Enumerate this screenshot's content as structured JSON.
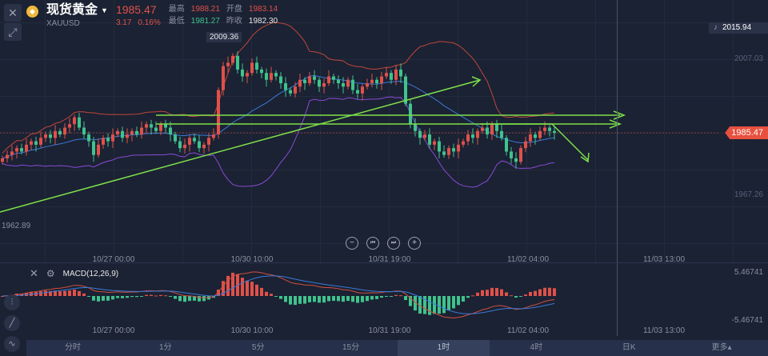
{
  "header": {
    "title": "现货黄金",
    "symbol": "XAUUSD",
    "price": "1985.47",
    "change": "3.17",
    "change_pct": "0.16%",
    "high_label": "最高",
    "high": "1988.21",
    "open_label": "开盘",
    "open": "1983.14",
    "low_label": "最低",
    "low": "1981.27",
    "prev_close_label": "昨收",
    "prev_close": "1982.30"
  },
  "price_axis": {
    "alert_price": "2015.94",
    "labels": [
      "2007.03",
      "1967.26"
    ],
    "current": "1985.47",
    "max_marker": "2009.36",
    "min_marker": "1962.89"
  },
  "time_axis": [
    "10/27 00:00",
    "10/30 10:00",
    "10/31 19:00",
    "11/02 04:00",
    "11/03 13:00"
  ],
  "zoom_controls": {
    "zoom_out": "−",
    "prev": "⏮",
    "next": "⏭",
    "zoom_in": "+"
  },
  "macd": {
    "label": "MACD(12,26,9)",
    "max": "5.46741",
    "min": "-5.46741"
  },
  "tabs": [
    {
      "label": "分时"
    },
    {
      "label": "1分"
    },
    {
      "label": "5分"
    },
    {
      "label": "15分"
    },
    {
      "label": "1时"
    },
    {
      "label": "4时"
    },
    {
      "label": "日K"
    },
    {
      "label": "更多▴"
    }
  ],
  "selected_tab": "1时",
  "colors": {
    "up": "#e0514a",
    "down": "#3fc38d",
    "trend": "#7ee04a",
    "bb_upper": "#c0473b",
    "bb_mid": "#3a7ad8",
    "bb_lower": "#8a4ad8"
  },
  "chart_data": {
    "type": "candlestick",
    "price_range": [
      1962.89,
      2015.94
    ],
    "closes": [
      1978,
      1979,
      1980,
      1981,
      1980,
      1982,
      1983,
      1982,
      1984,
      1985,
      1984,
      1986,
      1985,
      1987,
      1988,
      1990,
      1987,
      1985,
      1983,
      1979,
      1982,
      1984,
      1983,
      1985,
      1986,
      1984,
      1985,
      1986,
      1985,
      1987,
      1988,
      1987,
      1986,
      1988,
      1987,
      1985,
      1983,
      1981,
      1982,
      1984,
      1983,
      1981,
      1982,
      1984,
      1985,
      1998,
      2005,
      2006,
      2008,
      2004,
      2002,
      2003,
      2006,
      2004,
      2003,
      2001,
      2003,
      2002,
      2000,
      1998,
      1997,
      1999,
      2001,
      2000,
      2002,
      2001,
      1999,
      2000,
      2002,
      2001,
      2000,
      1999,
      2001,
      1998,
      1997,
      1999,
      2000,
      2001,
      2000,
      2002,
      2003,
      2001,
      2004,
      2002,
      1994,
      1988,
      1986,
      1984,
      1985,
      1982,
      1983,
      1980,
      1979,
      1981,
      1980,
      1982,
      1983,
      1985,
      1984,
      1986,
      1987,
      1985,
      1988,
      1986,
      1984,
      1980,
      1978,
      1977,
      1981,
      1983,
      1985,
      1984,
      1986,
      1987,
      1986,
      1985.47
    ]
  }
}
